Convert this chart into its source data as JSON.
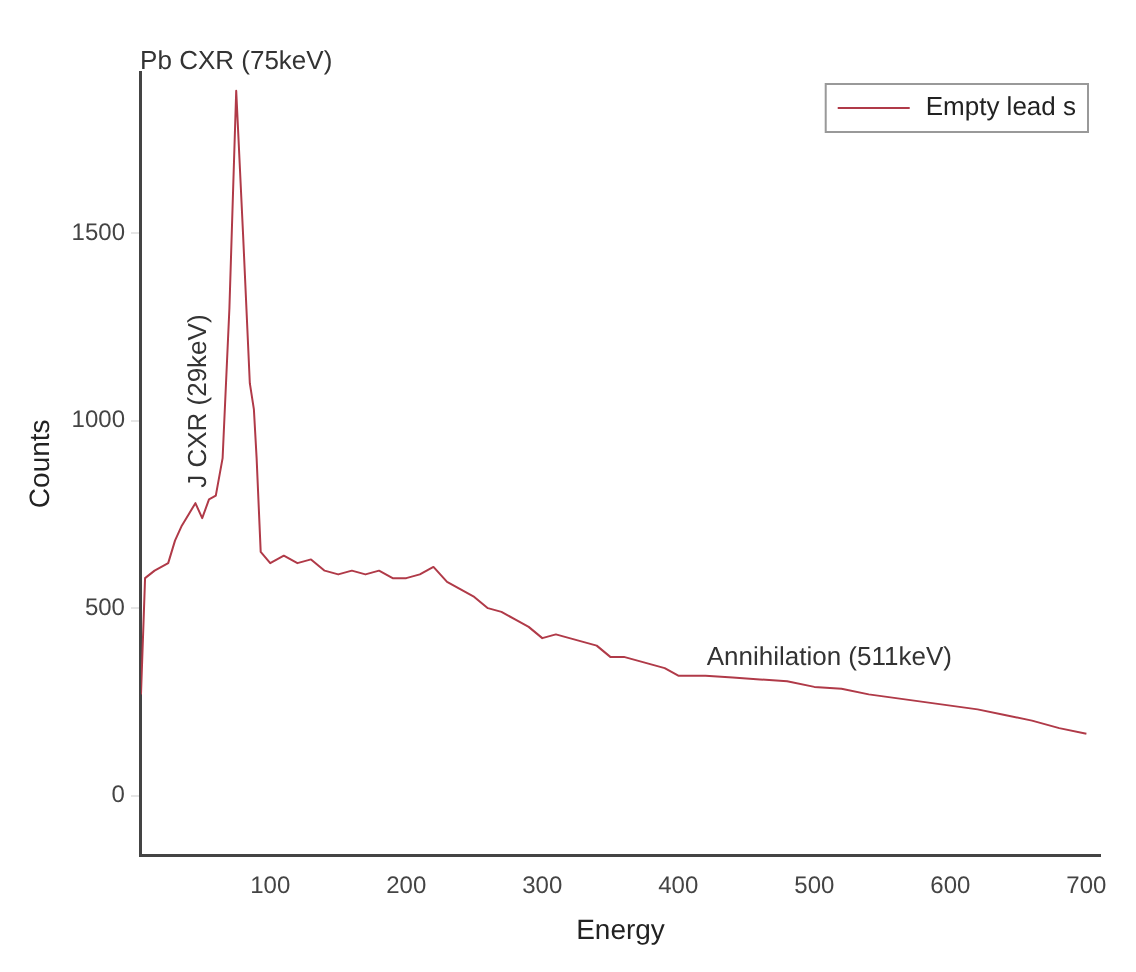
{
  "chart_data": {
    "type": "line",
    "xlabel": "Energy",
    "ylabel": "Counts",
    "xlim": [
      5,
      710
    ],
    "xticks": [
      100,
      200,
      300,
      400,
      500,
      600,
      700
    ],
    "ylim": [
      -160,
      1930
    ],
    "yticks": [
      0,
      500,
      1000,
      1500
    ],
    "grid": false,
    "legend": "top right",
    "marker": "none",
    "line_style": "solid",
    "annotations": [
      {
        "text": "Pb CXR (75keV)",
        "x": 75,
        "y": 1880
      },
      "J CXR (29keV)",
      {
        "text": "Annihilation (511keV)",
        "x": 511,
        "y": 290
      }
    ],
    "series": [
      {
        "name": "Empty lead s",
        "color": "#b03a48",
        "x": [
          5,
          8,
          15,
          25,
          30,
          35,
          40,
          45,
          50,
          55,
          60,
          65,
          70,
          75,
          80,
          85,
          88,
          90,
          93,
          100,
          110,
          120,
          130,
          140,
          150,
          160,
          170,
          180,
          190,
          200,
          210,
          220,
          230,
          240,
          250,
          260,
          270,
          280,
          290,
          300,
          310,
          320,
          330,
          340,
          350,
          360,
          370,
          380,
          390,
          400,
          420,
          440,
          460,
          480,
          500,
          520,
          540,
          560,
          580,
          600,
          620,
          640,
          660,
          680,
          700
        ],
        "values": [
          270,
          580,
          600,
          620,
          680,
          720,
          750,
          780,
          740,
          790,
          800,
          900,
          1300,
          1880,
          1500,
          1100,
          1030,
          900,
          650,
          620,
          640,
          620,
          630,
          600,
          590,
          600,
          590,
          600,
          580,
          580,
          590,
          610,
          570,
          550,
          530,
          500,
          490,
          470,
          450,
          420,
          430,
          420,
          410,
          400,
          370,
          370,
          360,
          350,
          340,
          320,
          320,
          315,
          310,
          305,
          290,
          285,
          270,
          260,
          250,
          240,
          230,
          215,
          200,
          180,
          165
        ]
      }
    ]
  }
}
